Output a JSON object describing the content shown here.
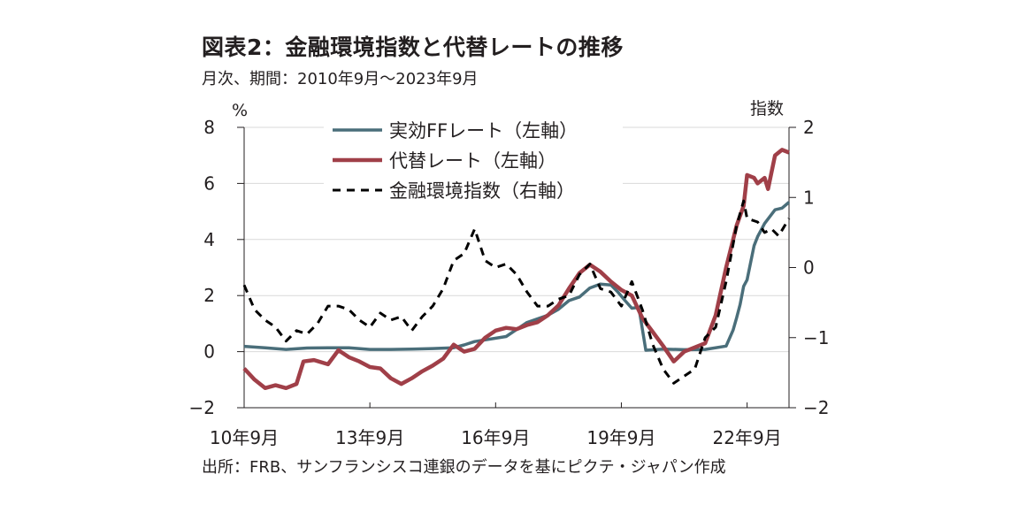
{
  "title": "図表2：金融環境指数と代替レートの推移",
  "subtitle": "月次、期間：2010年9月～2023年9月",
  "source": "出所：FRB、サンフランシスコ連銀のデータを基にピクテ・ジャパン作成",
  "colors": {
    "ff": "#4a6e7a",
    "shadow": "#a03f48",
    "fci": "#000000",
    "grid": "#d9d9d9"
  },
  "chart_data": {
    "type": "line",
    "left_unit": "%",
    "right_unit": "指数",
    "left_ylim": [
      -2,
      8
    ],
    "right_ylim": [
      -2,
      2
    ],
    "left_ticks": [
      "8",
      "6",
      "4",
      "2",
      "0",
      "−2"
    ],
    "right_ticks": [
      "2",
      "1",
      "0",
      "−1",
      "−2"
    ],
    "x_tick_labels": [
      "10年9月",
      "13年9月",
      "16年9月",
      "19年9月",
      "22年9月"
    ],
    "x_range": [
      "2010-09",
      "2023-09"
    ],
    "legend": [
      "実効FFレート（左軸）",
      "代替レート（左軸）",
      "金融環境指数（右軸）"
    ],
    "series": [
      {
        "name": "実効FFレート（左軸）",
        "axis": "left",
        "style": "solid",
        "points": [
          [
            "2010-09",
            0.19
          ],
          [
            "2011-03",
            0.14
          ],
          [
            "2011-09",
            0.08
          ],
          [
            "2012-03",
            0.13
          ],
          [
            "2012-09",
            0.14
          ],
          [
            "2013-03",
            0.14
          ],
          [
            "2013-09",
            0.08
          ],
          [
            "2014-03",
            0.08
          ],
          [
            "2014-09",
            0.09
          ],
          [
            "2015-03",
            0.11
          ],
          [
            "2015-09",
            0.14
          ],
          [
            "2015-12",
            0.24
          ],
          [
            "2016-03",
            0.36
          ],
          [
            "2016-12",
            0.54
          ],
          [
            "2017-03",
            0.79
          ],
          [
            "2017-06",
            1.04
          ],
          [
            "2017-12",
            1.3
          ],
          [
            "2018-03",
            1.51
          ],
          [
            "2018-06",
            1.82
          ],
          [
            "2018-09",
            1.95
          ],
          [
            "2018-12",
            2.27
          ],
          [
            "2019-03",
            2.41
          ],
          [
            "2019-06",
            2.38
          ],
          [
            "2019-08",
            2.13
          ],
          [
            "2019-10",
            1.83
          ],
          [
            "2019-12",
            1.55
          ],
          [
            "2020-02",
            1.58
          ],
          [
            "2020-04",
            0.05
          ],
          [
            "2020-09",
            0.09
          ],
          [
            "2021-03",
            0.07
          ],
          [
            "2021-09",
            0.08
          ],
          [
            "2022-03",
            0.2
          ],
          [
            "2022-05",
            0.77
          ],
          [
            "2022-06",
            1.21
          ],
          [
            "2022-07",
            1.68
          ],
          [
            "2022-08",
            2.33
          ],
          [
            "2022-09",
            2.56
          ],
          [
            "2022-11",
            3.78
          ],
          [
            "2022-12",
            4.1
          ],
          [
            "2023-02",
            4.57
          ],
          [
            "2023-05",
            5.06
          ],
          [
            "2023-07",
            5.12
          ],
          [
            "2023-09",
            5.33
          ]
        ]
      },
      {
        "name": "代替レート（左軸）",
        "axis": "left",
        "style": "solid",
        "points": [
          [
            "2010-09",
            -0.6
          ],
          [
            "2010-12",
            -1.0
          ],
          [
            "2011-03",
            -1.3
          ],
          [
            "2011-06",
            -1.2
          ],
          [
            "2011-09",
            -1.3
          ],
          [
            "2011-12",
            -1.15
          ],
          [
            "2012-02",
            -0.35
          ],
          [
            "2012-05",
            -0.3
          ],
          [
            "2012-09",
            -0.45
          ],
          [
            "2012-12",
            0.05
          ],
          [
            "2013-03",
            -0.2
          ],
          [
            "2013-06",
            -0.35
          ],
          [
            "2013-09",
            -0.55
          ],
          [
            "2013-12",
            -0.6
          ],
          [
            "2014-03",
            -0.95
          ],
          [
            "2014-06",
            -1.15
          ],
          [
            "2014-09",
            -0.95
          ],
          [
            "2014-12",
            -0.7
          ],
          [
            "2015-03",
            -0.5
          ],
          [
            "2015-06",
            -0.25
          ],
          [
            "2015-09",
            0.25
          ],
          [
            "2015-12",
            0.0
          ],
          [
            "2016-03",
            0.1
          ],
          [
            "2016-06",
            0.5
          ],
          [
            "2016-09",
            0.75
          ],
          [
            "2016-12",
            0.85
          ],
          [
            "2017-03",
            0.8
          ],
          [
            "2017-06",
            0.95
          ],
          [
            "2017-09",
            1.05
          ],
          [
            "2017-12",
            1.3
          ],
          [
            "2018-03",
            1.65
          ],
          [
            "2018-06",
            2.25
          ],
          [
            "2018-09",
            2.8
          ],
          [
            "2018-12",
            3.1
          ],
          [
            "2019-03",
            2.85
          ],
          [
            "2019-06",
            2.5
          ],
          [
            "2019-09",
            2.2
          ],
          [
            "2019-12",
            2.0
          ],
          [
            "2020-03",
            1.2
          ],
          [
            "2020-06",
            0.7
          ],
          [
            "2020-09",
            0.2
          ],
          [
            "2020-12",
            -0.35
          ],
          [
            "2021-03",
            0.0
          ],
          [
            "2021-06",
            0.15
          ],
          [
            "2021-09",
            0.3
          ],
          [
            "2021-12",
            1.3
          ],
          [
            "2022-03",
            3.0
          ],
          [
            "2022-06",
            4.5
          ],
          [
            "2022-08",
            5.2
          ],
          [
            "2022-09",
            6.3
          ],
          [
            "2022-11",
            6.2
          ],
          [
            "2022-12",
            6.0
          ],
          [
            "2023-02",
            6.2
          ],
          [
            "2023-03",
            5.8
          ],
          [
            "2023-05",
            7.0
          ],
          [
            "2023-07",
            7.2
          ],
          [
            "2023-09",
            7.1
          ]
        ]
      },
      {
        "name": "金融環境指数（右軸）",
        "axis": "right",
        "style": "dashed",
        "points": [
          [
            "2010-09",
            -0.25
          ],
          [
            "2010-12",
            -0.6
          ],
          [
            "2011-03",
            -0.75
          ],
          [
            "2011-06",
            -0.85
          ],
          [
            "2011-09",
            -1.05
          ],
          [
            "2011-12",
            -0.9
          ],
          [
            "2012-03",
            -0.95
          ],
          [
            "2012-06",
            -0.8
          ],
          [
            "2012-09",
            -0.55
          ],
          [
            "2012-12",
            -0.55
          ],
          [
            "2013-03",
            -0.6
          ],
          [
            "2013-06",
            -0.75
          ],
          [
            "2013-09",
            -0.85
          ],
          [
            "2013-12",
            -0.65
          ],
          [
            "2014-03",
            -0.75
          ],
          [
            "2014-06",
            -0.7
          ],
          [
            "2014-09",
            -0.9
          ],
          [
            "2014-12",
            -0.7
          ],
          [
            "2015-03",
            -0.55
          ],
          [
            "2015-06",
            -0.3
          ],
          [
            "2015-09",
            0.1
          ],
          [
            "2015-12",
            0.2
          ],
          [
            "2016-03",
            0.55
          ],
          [
            "2016-06",
            0.1
          ],
          [
            "2016-09",
            0.0
          ],
          [
            "2016-12",
            0.05
          ],
          [
            "2017-03",
            -0.1
          ],
          [
            "2017-06",
            -0.35
          ],
          [
            "2017-09",
            -0.55
          ],
          [
            "2017-12",
            -0.55
          ],
          [
            "2018-03",
            -0.45
          ],
          [
            "2018-06",
            -0.4
          ],
          [
            "2018-09",
            -0.1
          ],
          [
            "2018-12",
            0.05
          ],
          [
            "2019-03",
            -0.3
          ],
          [
            "2019-06",
            -0.35
          ],
          [
            "2019-09",
            -0.55
          ],
          [
            "2019-12",
            -0.2
          ],
          [
            "2020-03",
            -0.6
          ],
          [
            "2020-06",
            -1.1
          ],
          [
            "2020-09",
            -1.45
          ],
          [
            "2020-12",
            -1.65
          ],
          [
            "2021-03",
            -1.55
          ],
          [
            "2021-06",
            -1.45
          ],
          [
            "2021-09",
            -1.0
          ],
          [
            "2021-12",
            -0.85
          ],
          [
            "2022-03",
            -0.2
          ],
          [
            "2022-06",
            0.6
          ],
          [
            "2022-08",
            0.95
          ],
          [
            "2022-09",
            0.7
          ],
          [
            "2022-12",
            0.65
          ],
          [
            "2023-02",
            0.5
          ],
          [
            "2023-04",
            0.55
          ],
          [
            "2023-06",
            0.45
          ],
          [
            "2023-09",
            0.7
          ]
        ]
      }
    ]
  }
}
